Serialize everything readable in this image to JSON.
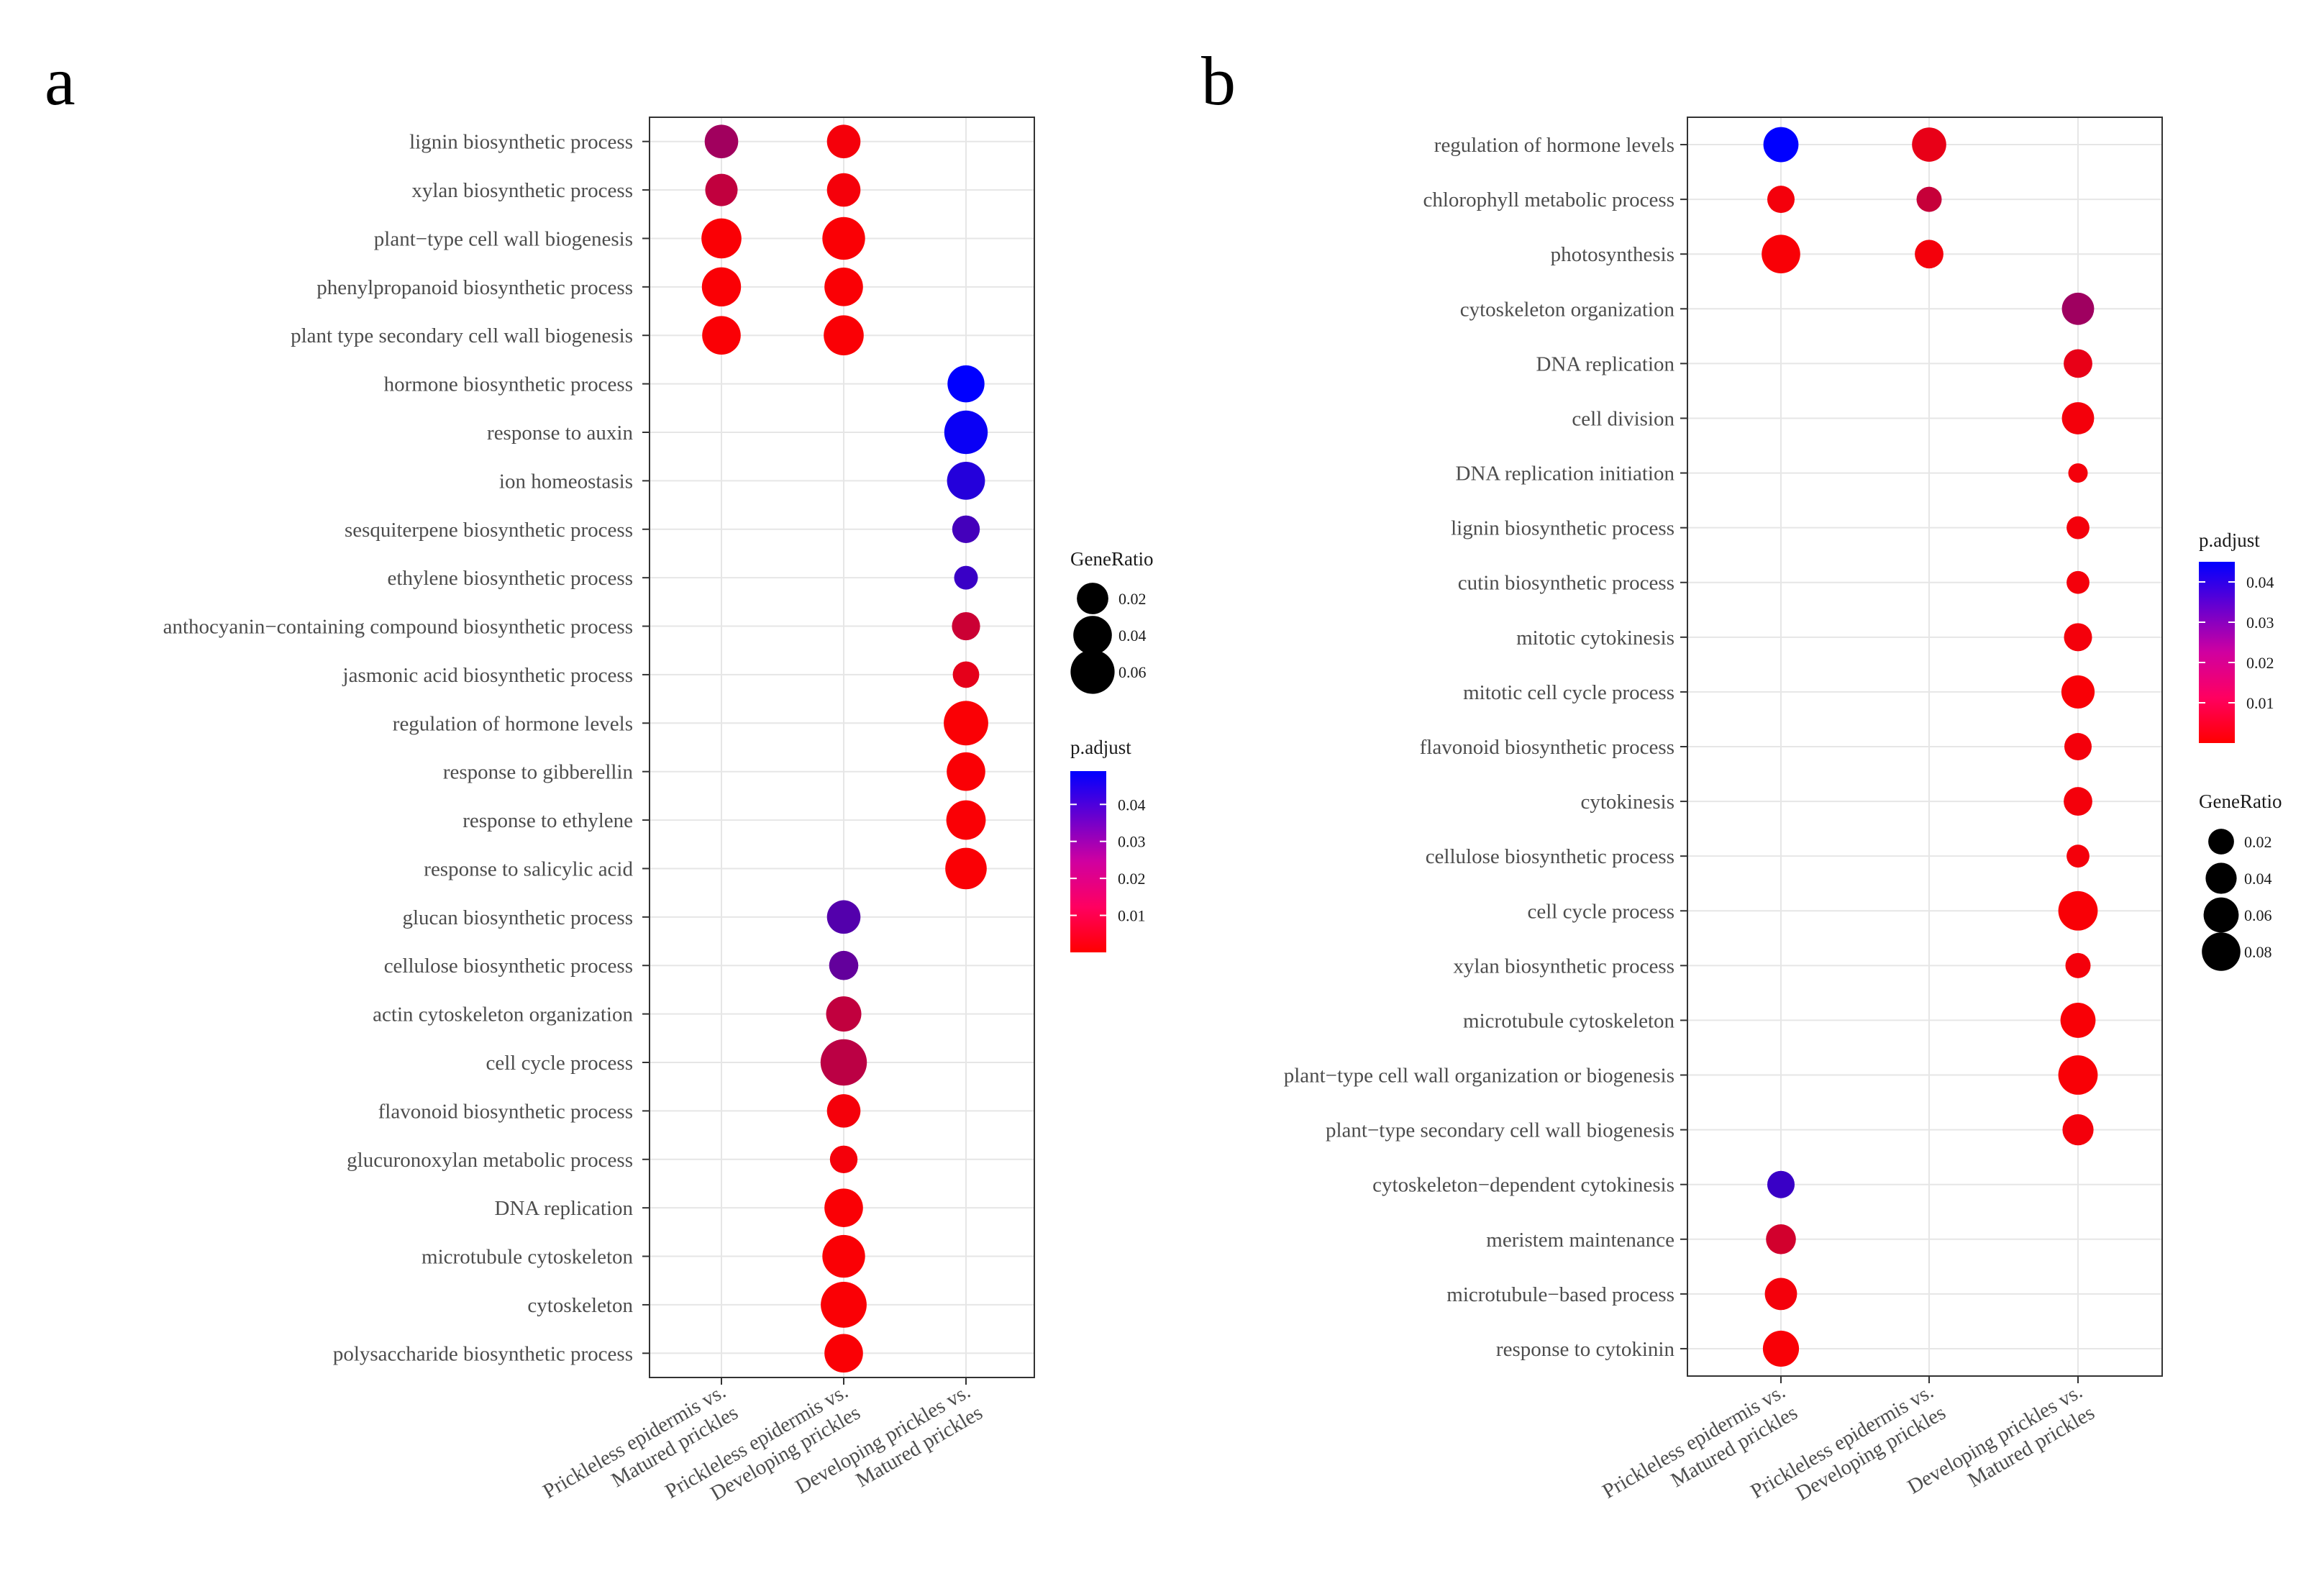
{
  "chart_data": [
    {
      "panel": "a",
      "type": "scatter",
      "xlabel": "",
      "ylabel": "",
      "x_categories": [
        "Prickleless epidermis vs.\nMatured prickles",
        "Prickleless epidermis vs.\nDeveloping prickles",
        "Developing prickles vs.\nMatured prickles"
      ],
      "y_categories": [
        "lignin biosynthetic process",
        "xylan biosynthetic process",
        "plant−type cell wall biogenesis",
        "phenylpropanoid biosynthetic process",
        "plant  type secondary cell wall biogenesis",
        "hormone biosynthetic process",
        "response to auxin",
        "ion homeostasis",
        "sesquiterpene biosynthetic process",
        "ethylene biosynthetic process",
        "anthocyanin−containing compound biosynthetic process",
        "jasmonic acid biosynthetic process",
        "regulation of hormone levels",
        "response to gibberellin",
        "response to ethylene",
        "response to salicylic acid",
        "glucan biosynthetic process",
        "cellulose biosynthetic process",
        "actin cytoskeleton organization",
        "cell cycle process",
        "flavonoid biosynthetic process",
        "glucuronoxylan metabolic process",
        "DNA replication",
        "microtubule cytoskeleton",
        "cytoskeleton",
        "polysaccharide biosynthetic process"
      ],
      "points": [
        {
          "x": 0,
          "y": 0,
          "gene_ratio": 0.025,
          "p_adjust": 0.018
        },
        {
          "x": 1,
          "y": 0,
          "gene_ratio": 0.025,
          "p_adjust": 0.002
        },
        {
          "x": 0,
          "y": 1,
          "gene_ratio": 0.022,
          "p_adjust": 0.012
        },
        {
          "x": 1,
          "y": 1,
          "gene_ratio": 0.025,
          "p_adjust": 0.002
        },
        {
          "x": 0,
          "y": 2,
          "gene_ratio": 0.045,
          "p_adjust": 0.001
        },
        {
          "x": 1,
          "y": 2,
          "gene_ratio": 0.055,
          "p_adjust": 0.001
        },
        {
          "x": 0,
          "y": 3,
          "gene_ratio": 0.042,
          "p_adjust": 0.001
        },
        {
          "x": 1,
          "y": 3,
          "gene_ratio": 0.04,
          "p_adjust": 0.001
        },
        {
          "x": 0,
          "y": 4,
          "gene_ratio": 0.04,
          "p_adjust": 0.001
        },
        {
          "x": 1,
          "y": 4,
          "gene_ratio": 0.045,
          "p_adjust": 0.001
        },
        {
          "x": 2,
          "y": 5,
          "gene_ratio": 0.035,
          "p_adjust": 0.049
        },
        {
          "x": 2,
          "y": 6,
          "gene_ratio": 0.058,
          "p_adjust": 0.047
        },
        {
          "x": 2,
          "y": 7,
          "gene_ratio": 0.038,
          "p_adjust": 0.042
        },
        {
          "x": 2,
          "y": 8,
          "gene_ratio": 0.012,
          "p_adjust": 0.036
        },
        {
          "x": 2,
          "y": 9,
          "gene_ratio": 0.006,
          "p_adjust": 0.038
        },
        {
          "x": 2,
          "y": 10,
          "gene_ratio": 0.013,
          "p_adjust": 0.01
        },
        {
          "x": 2,
          "y": 11,
          "gene_ratio": 0.01,
          "p_adjust": 0.005
        },
        {
          "x": 2,
          "y": 12,
          "gene_ratio": 0.062,
          "p_adjust": 0.001
        },
        {
          "x": 2,
          "y": 13,
          "gene_ratio": 0.04,
          "p_adjust": 0.001
        },
        {
          "x": 2,
          "y": 14,
          "gene_ratio": 0.043,
          "p_adjust": 0.001
        },
        {
          "x": 2,
          "y": 15,
          "gene_ratio": 0.05,
          "p_adjust": 0.001
        },
        {
          "x": 1,
          "y": 16,
          "gene_ratio": 0.025,
          "p_adjust": 0.033
        },
        {
          "x": 1,
          "y": 17,
          "gene_ratio": 0.015,
          "p_adjust": 0.03
        },
        {
          "x": 1,
          "y": 18,
          "gene_ratio": 0.03,
          "p_adjust": 0.012
        },
        {
          "x": 1,
          "y": 19,
          "gene_ratio": 0.07,
          "p_adjust": 0.013
        },
        {
          "x": 1,
          "y": 20,
          "gene_ratio": 0.025,
          "p_adjust": 0.002
        },
        {
          "x": 1,
          "y": 21,
          "gene_ratio": 0.012,
          "p_adjust": 0.002
        },
        {
          "x": 1,
          "y": 22,
          "gene_ratio": 0.04,
          "p_adjust": 0.001
        },
        {
          "x": 1,
          "y": 23,
          "gene_ratio": 0.055,
          "p_adjust": 0.001
        },
        {
          "x": 1,
          "y": 24,
          "gene_ratio": 0.068,
          "p_adjust": 0.001
        },
        {
          "x": 1,
          "y": 25,
          "gene_ratio": 0.04,
          "p_adjust": 0.001
        }
      ],
      "legend": {
        "size_title": "GeneRatio",
        "size_values": [
          0.02,
          0.04,
          0.06
        ],
        "size_labels": [
          "0.02",
          "0.04",
          "0.06"
        ],
        "color_title": "p.adjust",
        "color_ticks": [
          0.04,
          0.03,
          0.02,
          0.01
        ],
        "color_labels": [
          "0.04",
          "0.03",
          "0.02",
          "0.01"
        ],
        "color_range": [
          0.0,
          0.049
        ],
        "placement": "right"
      },
      "grid": true
    },
    {
      "panel": "b",
      "type": "scatter",
      "xlabel": "",
      "ylabel": "",
      "x_categories": [
        "Prickleless epidermis vs.\nMatured prickles",
        "Prickleless epidermis vs.\nDeveloping prickles",
        "Developing prickles vs.\nMatured prickles"
      ],
      "y_categories": [
        "regulation of hormone levels",
        "chlorophyll metabolic process",
        "photosynthesis",
        "cytoskeleton organization",
        "DNA replication",
        "cell division",
        "DNA replication initiation",
        "lignin biosynthetic process",
        "cutin biosynthetic process",
        "mitotic cytokinesis",
        "mitotic cell cycle process",
        "flavonoid biosynthetic process",
        "cytokinesis",
        "cellulose biosynthetic process",
        "cell cycle process",
        "xylan biosynthetic process",
        "microtubule cytoskeleton",
        "plant−type cell wall organization or biogenesis",
        "plant−type secondary cell wall biogenesis",
        "cytoskeleton−dependent cytokinesis",
        "meristem maintenance",
        "microtubule−based process",
        "response to cytokinin"
      ],
      "points": [
        {
          "x": 0,
          "y": 0,
          "gene_ratio": 0.06,
          "p_adjust": 0.045
        },
        {
          "x": 1,
          "y": 0,
          "gene_ratio": 0.055,
          "p_adjust": 0.004
        },
        {
          "x": 0,
          "y": 1,
          "gene_ratio": 0.025,
          "p_adjust": 0.002
        },
        {
          "x": 1,
          "y": 1,
          "gene_ratio": 0.018,
          "p_adjust": 0.01
        },
        {
          "x": 0,
          "y": 2,
          "gene_ratio": 0.08,
          "p_adjust": 0.001
        },
        {
          "x": 1,
          "y": 2,
          "gene_ratio": 0.03,
          "p_adjust": 0.002
        },
        {
          "x": 2,
          "y": 3,
          "gene_ratio": 0.045,
          "p_adjust": 0.017
        },
        {
          "x": 2,
          "y": 4,
          "gene_ratio": 0.03,
          "p_adjust": 0.004
        },
        {
          "x": 2,
          "y": 5,
          "gene_ratio": 0.045,
          "p_adjust": 0.002
        },
        {
          "x": 2,
          "y": 6,
          "gene_ratio": 0.005,
          "p_adjust": 0.002
        },
        {
          "x": 2,
          "y": 7,
          "gene_ratio": 0.012,
          "p_adjust": 0.002
        },
        {
          "x": 2,
          "y": 8,
          "gene_ratio": 0.012,
          "p_adjust": 0.002
        },
        {
          "x": 2,
          "y": 9,
          "gene_ratio": 0.028,
          "p_adjust": 0.002
        },
        {
          "x": 2,
          "y": 10,
          "gene_ratio": 0.05,
          "p_adjust": 0.001
        },
        {
          "x": 2,
          "y": 11,
          "gene_ratio": 0.025,
          "p_adjust": 0.002
        },
        {
          "x": 2,
          "y": 12,
          "gene_ratio": 0.03,
          "p_adjust": 0.002
        },
        {
          "x": 2,
          "y": 13,
          "gene_ratio": 0.012,
          "p_adjust": 0.002
        },
        {
          "x": 2,
          "y": 14,
          "gene_ratio": 0.085,
          "p_adjust": 0.001
        },
        {
          "x": 2,
          "y": 15,
          "gene_ratio": 0.018,
          "p_adjust": 0.002
        },
        {
          "x": 2,
          "y": 16,
          "gene_ratio": 0.06,
          "p_adjust": 0.001
        },
        {
          "x": 2,
          "y": 17,
          "gene_ratio": 0.085,
          "p_adjust": 0.001
        },
        {
          "x": 2,
          "y": 18,
          "gene_ratio": 0.04,
          "p_adjust": 0.002
        },
        {
          "x": 0,
          "y": 19,
          "gene_ratio": 0.025,
          "p_adjust": 0.035
        },
        {
          "x": 0,
          "y": 20,
          "gene_ratio": 0.035,
          "p_adjust": 0.008
        },
        {
          "x": 0,
          "y": 21,
          "gene_ratio": 0.045,
          "p_adjust": 0.002
        },
        {
          "x": 0,
          "y": 22,
          "gene_ratio": 0.065,
          "p_adjust": 0.001
        }
      ],
      "legend": {
        "color_title": "p.adjust",
        "color_ticks": [
          0.04,
          0.03,
          0.02,
          0.01
        ],
        "color_labels": [
          "0.04",
          "0.03",
          "0.02",
          "0.01"
        ],
        "color_range": [
          0.0,
          0.045
        ],
        "size_title": "GeneRatio",
        "size_values": [
          0.02,
          0.04,
          0.06,
          0.08
        ],
        "size_labels": [
          "0.02",
          "0.04",
          "0.06",
          "0.08"
        ],
        "placement": "right"
      },
      "grid": true
    }
  ],
  "colors": {
    "low": "#ff0000",
    "high": "#0000ff",
    "grid": "#e6e6e6",
    "border": "#333333"
  }
}
